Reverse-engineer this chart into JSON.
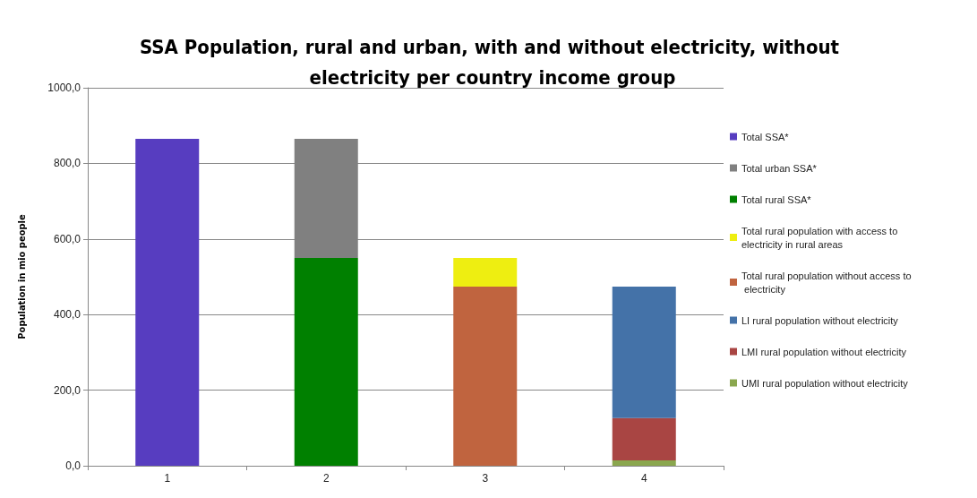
{
  "chart_data": {
    "type": "bar",
    "title": "SSA Population, rural and urban, with and without electricity, without electricity per country income group",
    "ylabel": "Population in mio people",
    "categories": [
      "1",
      "2",
      "3",
      "4"
    ],
    "stacked": true,
    "series": [
      {
        "name": "UMI rural population without electricity",
        "color": "#8aa74e",
        "values": [
          null,
          null,
          null,
          14
        ]
      },
      {
        "name": "LMI rural population without electricity",
        "color": "#a94543",
        "values": [
          null,
          null,
          null,
          112
        ]
      },
      {
        "name": "LI rural population without electricity",
        "color": "#4472a8",
        "values": [
          null,
          null,
          null,
          348
        ]
      },
      {
        "name": "Total rural population without access to electricity",
        "color": "#c0643f",
        "values": [
          null,
          null,
          474,
          null
        ]
      },
      {
        "name": "Total rural population with access to electricity in rural areas",
        "color": "#eeee11",
        "values": [
          null,
          null,
          76,
          null
        ]
      },
      {
        "name": "Total rural SSA*",
        "color": "#008000",
        "values": [
          null,
          550,
          null,
          null
        ]
      },
      {
        "name": "Total urban SSA*",
        "color": "#808080",
        "values": [
          null,
          315,
          null,
          null
        ]
      },
      {
        "name": "Total SSA*",
        "color": "#573dc0",
        "values": [
          865,
          null,
          null,
          null
        ]
      }
    ],
    "ylim": [
      0,
      1000
    ],
    "yticks": [
      {
        "value": 0,
        "label": "0,0"
      },
      {
        "value": 200,
        "label": "200,0"
      },
      {
        "value": 400,
        "label": "400,0"
      },
      {
        "value": 600,
        "label": "600,0"
      },
      {
        "value": 800,
        "label": "800,0"
      },
      {
        "value": 1000,
        "label": "1000,0"
      }
    ],
    "grid": "y",
    "legend": "right"
  }
}
